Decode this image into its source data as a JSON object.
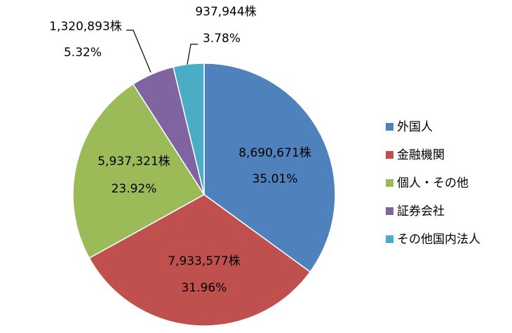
{
  "chart_data": {
    "type": "pie",
    "title": "",
    "start_angle_deg": 0,
    "direction": "clockwise",
    "legend_position": "right",
    "slices": [
      {
        "label": "外国人",
        "shares": "8,690,671株",
        "percent": 35.01,
        "percent_label": "35.01%",
        "color": "#4F81BD"
      },
      {
        "label": "金融機関",
        "shares": "7,933,577株",
        "percent": 31.96,
        "percent_label": "31.96%",
        "color": "#C0504D"
      },
      {
        "label": "個人・その他",
        "shares": "5,937,321株",
        "percent": 23.92,
        "percent_label": "23.92%",
        "color": "#9BBB59"
      },
      {
        "label": "証券会社",
        "shares": "1,320,893株",
        "percent": 5.32,
        "percent_label": "5.32%",
        "color": "#8064A2"
      },
      {
        "label": "その他国内法人",
        "shares": "937,944株",
        "percent": 3.78,
        "percent_label": "3.78%",
        "color": "#4BACC6"
      }
    ]
  }
}
